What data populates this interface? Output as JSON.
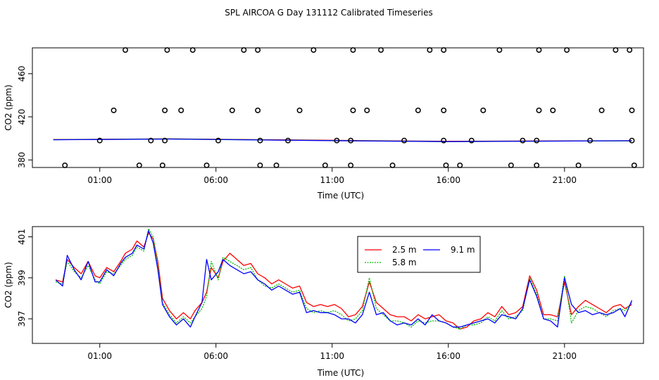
{
  "title": "SPL AIRCOA G  Day 131112  Calibrated Timeseries",
  "chart_data": [
    {
      "type": "scatter",
      "title": "",
      "xlabel": "Time (UTC)",
      "ylabel": "CO2 (ppm)",
      "xlim": [
        -1.9,
        24.4
      ],
      "ylim": [
        373,
        484
      ],
      "xticks": [
        1,
        6,
        11,
        16,
        21
      ],
      "xtick_labels": [
        "01:00",
        "06:00",
        "11:00",
        "16:00",
        "21:00"
      ],
      "yticks": [
        380,
        420,
        460
      ],
      "ytick_labels": [
        "380",
        "420",
        "460"
      ],
      "points": [
        {
          "x": 2.1,
          "y": 482
        },
        {
          "x": 3.9,
          "y": 482
        },
        {
          "x": 5.0,
          "y": 482
        },
        {
          "x": 7.2,
          "y": 482
        },
        {
          "x": 7.8,
          "y": 482
        },
        {
          "x": 10.2,
          "y": 482
        },
        {
          "x": 11.9,
          "y": 482
        },
        {
          "x": 13.1,
          "y": 482
        },
        {
          "x": 15.2,
          "y": 482
        },
        {
          "x": 15.8,
          "y": 482
        },
        {
          "x": 18.2,
          "y": 482
        },
        {
          "x": 19.9,
          "y": 482
        },
        {
          "x": 21.1,
          "y": 482
        },
        {
          "x": 23.2,
          "y": 482
        },
        {
          "x": 23.8,
          "y": 482
        },
        {
          "x": 1.6,
          "y": 426
        },
        {
          "x": 3.8,
          "y": 426
        },
        {
          "x": 4.5,
          "y": 426
        },
        {
          "x": 6.7,
          "y": 426
        },
        {
          "x": 7.8,
          "y": 426
        },
        {
          "x": 9.6,
          "y": 426
        },
        {
          "x": 11.9,
          "y": 426
        },
        {
          "x": 12.5,
          "y": 426
        },
        {
          "x": 14.7,
          "y": 426
        },
        {
          "x": 15.8,
          "y": 426
        },
        {
          "x": 17.5,
          "y": 426
        },
        {
          "x": 19.9,
          "y": 426
        },
        {
          "x": 20.5,
          "y": 426
        },
        {
          "x": 22.6,
          "y": 426
        },
        {
          "x": 23.9,
          "y": 426
        },
        {
          "x": 1.0,
          "y": 398
        },
        {
          "x": 3.2,
          "y": 398
        },
        {
          "x": 3.8,
          "y": 398
        },
        {
          "x": 6.1,
          "y": 398
        },
        {
          "x": 7.9,
          "y": 398
        },
        {
          "x": 9.1,
          "y": 398
        },
        {
          "x": 11.2,
          "y": 398
        },
        {
          "x": 11.8,
          "y": 398
        },
        {
          "x": 14.1,
          "y": 398
        },
        {
          "x": 15.8,
          "y": 398
        },
        {
          "x": 17.0,
          "y": 398
        },
        {
          "x": 19.2,
          "y": 398
        },
        {
          "x": 19.8,
          "y": 398
        },
        {
          "x": 22.1,
          "y": 398
        },
        {
          "x": 23.9,
          "y": 398
        },
        {
          "x": -0.5,
          "y": 375
        },
        {
          "x": 2.7,
          "y": 375
        },
        {
          "x": 3.7,
          "y": 375
        },
        {
          "x": 5.6,
          "y": 375
        },
        {
          "x": 7.9,
          "y": 375
        },
        {
          "x": 8.6,
          "y": 375
        },
        {
          "x": 10.7,
          "y": 375
        },
        {
          "x": 11.8,
          "y": 375
        },
        {
          "x": 13.6,
          "y": 375
        },
        {
          "x": 15.9,
          "y": 375
        },
        {
          "x": 16.5,
          "y": 375
        },
        {
          "x": 18.7,
          "y": 375
        },
        {
          "x": 19.8,
          "y": 375
        },
        {
          "x": 21.6,
          "y": 375
        },
        {
          "x": 24.0,
          "y": 375
        }
      ],
      "series": [
        {
          "name": "2.5 m",
          "color": "#ff0000",
          "x": [
            -1,
            4,
            8,
            12,
            16,
            20,
            23.9
          ],
          "values": [
            398.9,
            399.6,
            398.8,
            398.0,
            397.3,
            397.6,
            397.8
          ]
        },
        {
          "name": "5.8 m",
          "color": "#00bb00",
          "x": [
            -1,
            4,
            8,
            12,
            16,
            20,
            23.9
          ],
          "values": [
            398.8,
            399.5,
            398.6,
            397.8,
            397.0,
            397.5,
            397.7
          ]
        },
        {
          "name": "9.1 m",
          "color": "#0000ff",
          "x": [
            -1,
            4,
            8,
            12,
            16,
            20,
            23.9
          ],
          "values": [
            398.7,
            399.4,
            398.5,
            397.7,
            397.0,
            397.4,
            397.8
          ]
        }
      ]
    },
    {
      "type": "line",
      "title": "",
      "xlabel": "Time (UTC)",
      "ylabel": "CO2 (ppm)",
      "xlim": [
        -1.9,
        24.4
      ],
      "ylim": [
        395.8,
        401.5
      ],
      "xticks": [
        1,
        6,
        11,
        16,
        21
      ],
      "xtick_labels": [
        "01:00",
        "06:00",
        "11:00",
        "16:00",
        "21:00"
      ],
      "yticks": [
        397,
        399,
        401
      ],
      "ytick_labels": [
        "397",
        "399",
        "401"
      ],
      "legend": {
        "position": "top-center"
      },
      "series": [
        {
          "name": "2.5 m",
          "color": "#ff0000",
          "x": [
            -0.9,
            -0.6,
            -0.4,
            -0.1,
            0.2,
            0.5,
            0.8,
            1.0,
            1.3,
            1.6,
            1.9,
            2.1,
            2.4,
            2.6,
            2.9,
            3.1,
            3.3,
            3.5,
            3.7,
            4.0,
            4.3,
            4.6,
            4.9,
            5.1,
            5.4,
            5.6,
            5.8,
            6.1,
            6.3,
            6.6,
            6.9,
            7.2,
            7.5,
            7.8,
            8.1,
            8.4,
            8.7,
            9.0,
            9.3,
            9.6,
            9.9,
            10.2,
            10.5,
            10.8,
            11.1,
            11.4,
            11.7,
            12.0,
            12.3,
            12.6,
            12.9,
            13.2,
            13.5,
            13.8,
            14.1,
            14.4,
            14.7,
            15.0,
            15.3,
            15.6,
            15.9,
            16.2,
            16.5,
            16.8,
            17.1,
            17.4,
            17.7,
            18.0,
            18.3,
            18.6,
            18.9,
            19.2,
            19.5,
            19.8,
            20.1,
            20.4,
            20.7,
            21.0,
            21.3,
            21.6,
            21.9,
            22.2,
            22.5,
            22.8,
            23.1,
            23.4,
            23.6,
            23.9
          ],
          "values": [
            398.9,
            398.8,
            399.9,
            399.5,
            399.2,
            399.8,
            399.1,
            399.0,
            399.5,
            399.3,
            399.8,
            400.2,
            400.4,
            400.8,
            400.5,
            401.2,
            400.9,
            399.8,
            398.0,
            397.4,
            397.0,
            397.3,
            397.0,
            397.4,
            397.8,
            398.3,
            399.5,
            399.0,
            399.8,
            400.2,
            399.9,
            399.6,
            399.7,
            399.2,
            399.0,
            398.7,
            398.9,
            398.7,
            398.5,
            398.6,
            397.8,
            397.6,
            397.7,
            397.6,
            397.7,
            397.5,
            397.1,
            397.2,
            397.6,
            398.8,
            397.8,
            397.5,
            397.2,
            397.1,
            397.1,
            396.9,
            397.2,
            397.0,
            397.1,
            397.2,
            396.9,
            396.8,
            396.5,
            396.6,
            396.9,
            397.0,
            397.3,
            397.1,
            397.6,
            397.2,
            397.3,
            397.6,
            399.1,
            398.4,
            397.2,
            397.2,
            397.1,
            398.8,
            397.2,
            397.6,
            397.9,
            397.7,
            397.5,
            397.3,
            397.6,
            397.7,
            397.5,
            397.7
          ]
        },
        {
          "name": "5.8 m",
          "color": "#00bb00",
          "x": [
            -0.9,
            -0.6,
            -0.4,
            -0.1,
            0.2,
            0.5,
            0.8,
            1.0,
            1.3,
            1.6,
            1.9,
            2.1,
            2.4,
            2.6,
            2.9,
            3.1,
            3.3,
            3.5,
            3.7,
            4.0,
            4.3,
            4.6,
            4.9,
            5.1,
            5.4,
            5.6,
            5.8,
            6.1,
            6.3,
            6.6,
            6.9,
            7.2,
            7.5,
            7.8,
            8.1,
            8.4,
            8.7,
            9.0,
            9.3,
            9.6,
            9.9,
            10.2,
            10.5,
            10.8,
            11.1,
            11.4,
            11.7,
            12.0,
            12.3,
            12.6,
            12.9,
            13.2,
            13.5,
            13.8,
            14.1,
            14.4,
            14.7,
            15.0,
            15.3,
            15.6,
            15.9,
            16.2,
            16.5,
            16.8,
            17.1,
            17.4,
            17.7,
            18.0,
            18.3,
            18.6,
            18.9,
            19.2,
            19.5,
            19.8,
            20.1,
            20.4,
            20.7,
            21.0,
            21.3,
            21.6,
            21.9,
            22.2,
            22.5,
            22.8,
            23.1,
            23.4,
            23.6,
            23.9
          ],
          "values": [
            398.8,
            398.7,
            399.8,
            399.3,
            399.0,
            399.6,
            398.9,
            398.7,
            399.3,
            399.2,
            399.6,
            399.9,
            400.1,
            400.5,
            400.3,
            401.4,
            401.0,
            399.6,
            397.8,
            397.2,
            396.8,
            397.1,
            396.8,
            397.1,
            397.5,
            398.1,
            399.8,
            398.9,
            400.0,
            399.8,
            399.6,
            399.4,
            399.5,
            398.9,
            398.6,
            398.5,
            398.7,
            398.5,
            398.3,
            398.4,
            397.5,
            397.3,
            397.4,
            397.3,
            397.4,
            397.2,
            396.9,
            397.0,
            397.4,
            399.0,
            397.5,
            397.2,
            396.9,
            396.9,
            396.8,
            396.6,
            396.9,
            396.8,
            396.9,
            396.9,
            396.8,
            396.6,
            396.5,
            396.7,
            396.7,
            396.8,
            397.1,
            396.9,
            397.4,
            397.0,
            397.1,
            397.4,
            399.0,
            398.2,
            397.0,
            397.0,
            396.9,
            399.1,
            396.8,
            397.4,
            397.6,
            397.5,
            397.3,
            397.1,
            397.4,
            397.5,
            397.4,
            397.8
          ]
        },
        {
          "name": "9.1 m",
          "color": "#0000ff",
          "x": [
            -0.9,
            -0.6,
            -0.4,
            -0.1,
            0.2,
            0.5,
            0.8,
            1.0,
            1.3,
            1.6,
            1.9,
            2.1,
            2.4,
            2.6,
            2.9,
            3.1,
            3.3,
            3.5,
            3.7,
            4.0,
            4.3,
            4.6,
            4.9,
            5.1,
            5.4,
            5.6,
            5.8,
            6.1,
            6.3,
            6.6,
            6.9,
            7.2,
            7.5,
            7.8,
            8.1,
            8.4,
            8.7,
            9.0,
            9.3,
            9.6,
            9.9,
            10.2,
            10.5,
            10.8,
            11.1,
            11.4,
            11.7,
            12.0,
            12.3,
            12.6,
            12.9,
            13.2,
            13.5,
            13.8,
            14.1,
            14.4,
            14.7,
            15.0,
            15.3,
            15.6,
            15.9,
            16.2,
            16.5,
            16.8,
            17.1,
            17.4,
            17.7,
            18.0,
            18.3,
            18.6,
            18.9,
            19.2,
            19.5,
            19.8,
            20.1,
            20.4,
            20.7,
            21.0,
            21.3,
            21.6,
            21.9,
            22.2,
            22.5,
            22.8,
            23.1,
            23.4,
            23.6,
            23.9
          ],
          "values": [
            398.9,
            398.6,
            400.1,
            399.4,
            398.9,
            399.8,
            398.8,
            398.8,
            399.4,
            399.1,
            399.7,
            400.0,
            400.2,
            400.6,
            400.4,
            401.3,
            400.7,
            399.4,
            397.7,
            397.1,
            396.7,
            397.0,
            396.6,
            397.1,
            397.8,
            399.9,
            398.9,
            399.3,
            399.9,
            399.6,
            399.4,
            399.2,
            399.3,
            398.9,
            398.7,
            398.4,
            398.6,
            398.4,
            398.2,
            398.3,
            397.3,
            397.4,
            397.3,
            397.3,
            397.2,
            397.0,
            397.0,
            396.8,
            397.2,
            398.3,
            397.2,
            397.3,
            396.9,
            396.7,
            396.8,
            396.7,
            397.0,
            396.7,
            397.2,
            396.9,
            396.8,
            396.6,
            396.6,
            396.7,
            396.8,
            396.9,
            397.0,
            396.8,
            397.2,
            397.1,
            397.0,
            397.5,
            398.9,
            398.1,
            397.0,
            396.9,
            396.6,
            399.0,
            397.7,
            397.3,
            397.4,
            397.2,
            397.3,
            397.2,
            397.3,
            397.5,
            397.1,
            397.9
          ]
        }
      ]
    }
  ]
}
